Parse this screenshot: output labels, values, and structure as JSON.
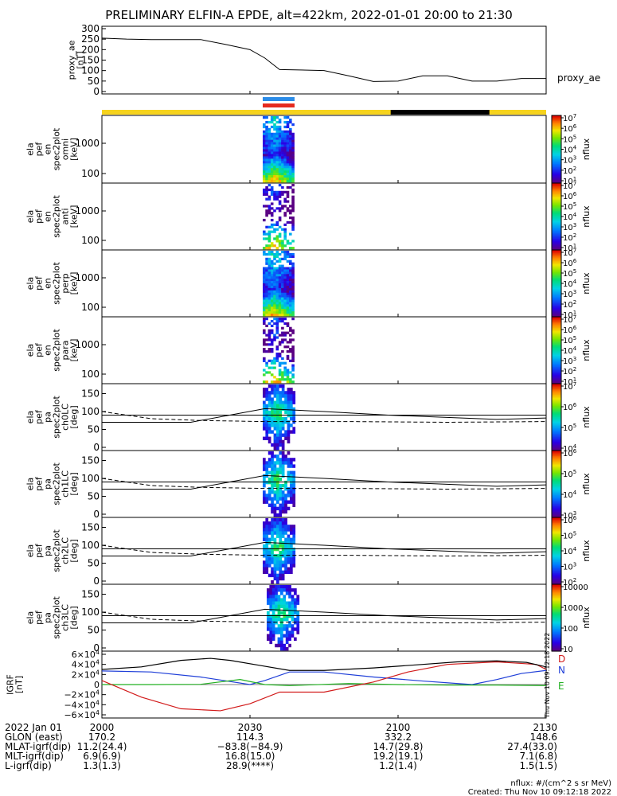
{
  "title": "PRELIMINARY ELFIN-A EPDE, alt=422km, 2022-01-01 20:00 to 21:30",
  "colors": {
    "day_bar": "#f6d31d",
    "night_bar": "#000000",
    "science_zone_blue": "#2b8ce8",
    "science_zone_red": "#e52a1e",
    "grf_n": "#1f3fd8",
    "grf_e": "#22b022",
    "grf_d": "#d21b1b"
  },
  "chart_data": [
    {
      "type": "line",
      "ylabel": "proxy_ae\n[nT]",
      "legend": "proxy_ae",
      "ylim": [
        0,
        300
      ],
      "yticks": [
        "300",
        "250",
        "200",
        "150",
        "100",
        "50",
        "0"
      ],
      "x_minutes": [
        0,
        5,
        10,
        15,
        20,
        25,
        30,
        33,
        36,
        40,
        45,
        50,
        55,
        60,
        65,
        70,
        75,
        80,
        85,
        90
      ],
      "values": [
        255,
        250,
        248,
        248,
        248,
        225,
        200,
        160,
        105,
        103,
        100,
        75,
        48,
        50,
        75,
        75,
        50,
        50,
        62,
        62
      ]
    },
    {
      "type": "heatmap",
      "ylabel": "ela\npef\nen\nspec2plot\nomni\n[keV]",
      "colorbar_label": "nflux",
      "yticks": [
        "1000",
        "100"
      ],
      "cbar_ticks": [
        "10^7",
        "10^6",
        "10^5",
        "10^4",
        "10^3",
        "10^2",
        "10^1"
      ]
    },
    {
      "type": "heatmap",
      "ylabel": "ela\npef\nen\nspec2plot\nanti\n[keV]",
      "colorbar_label": "nflux",
      "yticks": [
        "1000",
        "100"
      ],
      "cbar_ticks": [
        "10^7",
        "10^6",
        "10^5",
        "10^4",
        "10^3",
        "10^2",
        "10^1"
      ]
    },
    {
      "type": "heatmap",
      "ylabel": "ela\npef\nen\nspec2plot\nperp\n[keV]",
      "colorbar_label": "nflux",
      "yticks": [
        "1000",
        "100"
      ],
      "cbar_ticks": [
        "10^7",
        "10^6",
        "10^5",
        "10^4",
        "10^3",
        "10^2",
        "10^1"
      ]
    },
    {
      "type": "heatmap",
      "ylabel": "ela\npef\nen\nspec2plot\npara\n[keV]",
      "colorbar_label": "nflux",
      "yticks": [
        "1000",
        "100"
      ],
      "cbar_ticks": [
        "10^7",
        "10^6",
        "10^5",
        "10^4",
        "10^3",
        "10^2",
        "10^1"
      ]
    },
    {
      "type": "heatmap",
      "ylabel": "ela\npef\npa\nspec2plot\nch0LC\n[deg]",
      "colorbar_label": "nflux",
      "yticks": [
        "150",
        "100",
        "50",
        "0"
      ],
      "cbar_ticks": [
        "10^7",
        "10^6",
        "10^5",
        "10^4"
      ]
    },
    {
      "type": "heatmap",
      "ylabel": "ela\npef\npa\nspec2plot\nch1LC\n[deg]",
      "colorbar_label": "nflux",
      "yticks": [
        "150",
        "100",
        "50",
        "0"
      ],
      "cbar_ticks": [
        "10^6",
        "10^5",
        "10^4",
        "10^3"
      ]
    },
    {
      "type": "heatmap",
      "ylabel": "ela\npef\npa\nspec2plot\nch2LC\n[deg]",
      "colorbar_label": "nflux",
      "yticks": [
        "150",
        "100",
        "50",
        "0"
      ],
      "cbar_ticks": [
        "10^6",
        "10^5",
        "10^4",
        "10^3",
        "10^2"
      ]
    },
    {
      "type": "heatmap",
      "ylabel": "ela\npef\npa\nspec2plot\nch3LC\n[deg]",
      "colorbar_label": "nflux",
      "yticks": [
        "150",
        "100",
        "50",
        "0"
      ],
      "cbar_ticks": [
        "10000",
        "1000",
        "100",
        "10"
      ]
    },
    {
      "type": "line",
      "ylabel": "IGRF\n[nT]",
      "yticks": [
        "6×10^4",
        "4×10^4",
        "2×10^4",
        "0",
        "−2×10^4",
        "−4×10^4",
        "−6×10^4"
      ],
      "ylim": [
        -60000,
        60000
      ],
      "series": [
        {
          "name": "N",
          "x_minutes": [
            0,
            10,
            20,
            30,
            33,
            38,
            45,
            55,
            65,
            75,
            80,
            85,
            90
          ],
          "values": [
            27000,
            25000,
            15000,
            0,
            8000,
            25000,
            25000,
            15000,
            7000,
            0,
            10000,
            22000,
            28000
          ]
        },
        {
          "name": "E",
          "x_minutes": [
            0,
            10,
            20,
            28,
            33,
            38,
            50,
            60,
            70,
            80,
            90
          ],
          "values": [
            0,
            0,
            500,
            10000,
            0,
            -2000,
            2000,
            0,
            -1000,
            -1000,
            -2000
          ]
        },
        {
          "name": "D",
          "x_minutes": [
            0,
            8,
            16,
            24,
            30,
            36,
            45,
            55,
            62,
            70,
            80,
            88,
            90
          ],
          "values": [
            8000,
            -25000,
            -48000,
            -52000,
            -38000,
            -15000,
            -15000,
            5000,
            25000,
            40000,
            45000,
            40000,
            30000
          ]
        },
        {
          "name": "",
          "x_minutes": [
            0,
            8,
            16,
            22,
            26,
            32,
            38,
            45,
            55,
            65,
            72,
            80,
            86,
            90
          ],
          "values": [
            30000,
            35000,
            48000,
            52000,
            48000,
            38000,
            28000,
            28000,
            33000,
            40000,
            45000,
            47000,
            44000,
            35000
          ]
        }
      ]
    }
  ],
  "footer": {
    "rows": [
      {
        "label": "2022 Jan 01",
        "values": [
          "2000",
          "2030",
          "2100",
          "2130"
        ]
      },
      {
        "label": "GLON (east)",
        "values": [
          "170.2",
          "114.3",
          "332.2",
          "148.6"
        ]
      },
      {
        "label": "MLAT-igrf(dip)",
        "values": [
          "11.2(24.4)",
          "−83.8(−84.9)",
          "14.7(29.8)",
          "27.4(33.0)"
        ]
      },
      {
        "label": "MLT-igrf(dip)",
        "values": [
          "6.9(6.9)",
          "16.8(15.0)",
          "19.2(19.1)",
          "7.1(6.8)"
        ]
      },
      {
        "label": "L-igrf(dip)",
        "values": [
          "1.3(1.3)",
          "28.9(****)",
          "1.2(1.4)",
          "1.5(1.5)"
        ]
      }
    ],
    "units_note": "nflux: #/(cm^2 s sr MeV)",
    "created": "Created: Thu Nov 10 09:12:18 2022",
    "side_stamp": "Thu Nov 10 09:12:18 2022"
  }
}
